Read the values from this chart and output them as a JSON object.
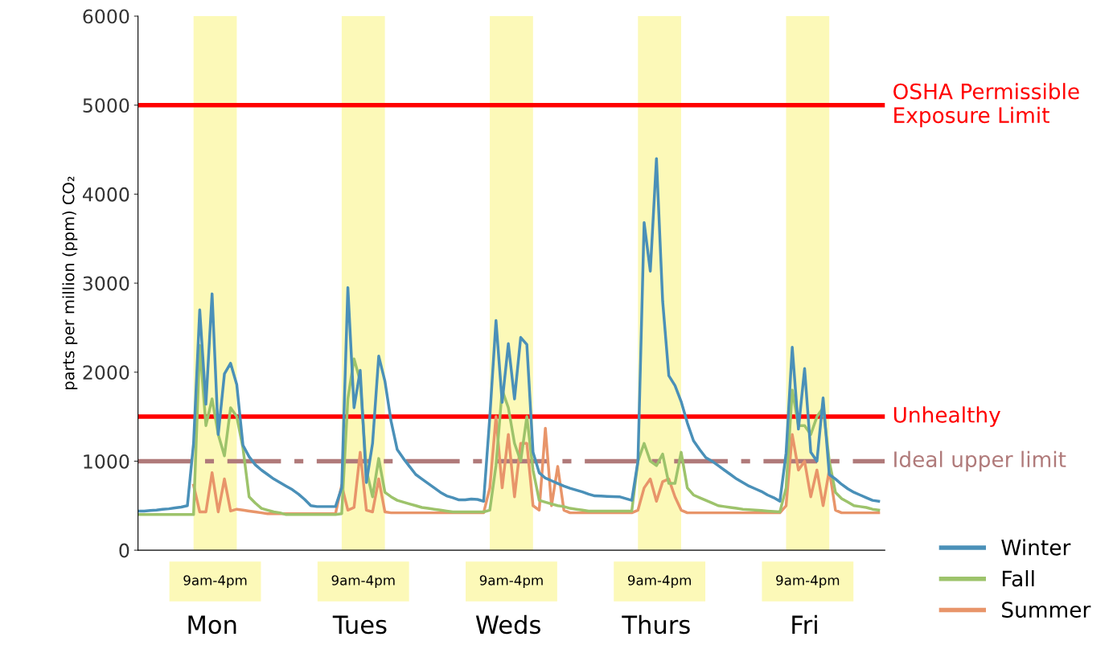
{
  "chart_data": {
    "type": "line",
    "ylabel": "parts per million (ppm) CO₂",
    "categories": [
      null,
      null,
      null,
      null,
      null,
      null,
      null,
      null,
      null,
      null,
      null,
      null,
      "Mon",
      null,
      null,
      null,
      null,
      null,
      null,
      null,
      null,
      null,
      null,
      null,
      null,
      null,
      null,
      null,
      null,
      null,
      null,
      null,
      null,
      null,
      null,
      null,
      "Tues",
      null,
      null,
      null,
      null,
      null,
      null,
      null,
      null,
      null,
      null,
      null,
      null,
      null,
      null,
      null,
      null,
      null,
      null,
      null,
      null,
      null,
      null,
      null,
      "Weds",
      null,
      null,
      null,
      null,
      null,
      null,
      null,
      null,
      null,
      null,
      null,
      null,
      null,
      null,
      null,
      null,
      null,
      null,
      null,
      null,
      null,
      null,
      null,
      "Thurs",
      null,
      null,
      null,
      null,
      null,
      null,
      null,
      null,
      null,
      null,
      null,
      null,
      null,
      null,
      null,
      null,
      null,
      null,
      null,
      null,
      null,
      null,
      null,
      "Fri",
      null,
      null,
      null,
      null,
      null,
      null,
      null,
      null,
      null,
      null,
      null,
      null
    ],
    "ylim": [
      0,
      6000
    ],
    "yticks": [
      0,
      1000,
      2000,
      3000,
      4000,
      5000,
      6000
    ],
    "grid": false,
    "legend": "bottom right",
    "line_style": "solid",
    "marker": "none",
    "annotations": [
      "9am-4pm",
      "9am-4pm",
      "9am-4pm",
      "9am-4pm",
      "9am-4pm"
    ],
    "ref_lines": [
      {
        "axis": "y",
        "value": 5000,
        "label": "OSHA Permissible Exposure Limit",
        "color": "#ff0000",
        "line_style": "solid"
      },
      {
        "axis": "y",
        "value": 1500,
        "label": "Unhealthy",
        "color": "#ff0000",
        "line_style": "solid"
      },
      {
        "axis": "y",
        "value": 1000,
        "label": "Ideal upper limit",
        "color": "#b07a7a",
        "line_style": "dashed"
      }
    ],
    "series": [
      {
        "name": "Summer",
        "color": "#e8956a",
        "values": [
          null,
          null,
          null,
          null,
          null,
          null,
          null,
          null,
          null,
          730,
          430,
          430,
          870,
          430,
          800,
          440,
          460,
          450,
          440,
          430,
          420,
          410,
          410,
          410,
          410,
          410,
          410,
          410,
          410,
          410,
          410,
          410,
          410,
          730,
          450,
          480,
          1100,
          450,
          430,
          800,
          430,
          420,
          420,
          420,
          420,
          420,
          420,
          420,
          420,
          420,
          420,
          420,
          420,
          420,
          420,
          420,
          420,
          700,
          1500,
          700,
          1300,
          600,
          1200,
          1200,
          500,
          450,
          1370,
          500,
          940,
          450,
          420,
          420,
          420,
          420,
          420,
          420,
          420,
          420,
          420,
          420,
          420,
          450,
          700,
          800,
          550,
          770,
          800,
          600,
          450,
          420,
          420,
          420,
          420,
          420,
          420,
          420,
          420,
          420,
          420,
          420,
          420,
          420,
          420,
          420,
          420,
          500,
          1300,
          900,
          1000,
          600,
          900,
          500,
          900,
          450,
          420,
          420,
          420,
          420,
          420,
          420,
          420
        ]
      },
      {
        "name": "Fall",
        "color": "#9dc36b",
        "values": [
          400,
          400,
          400,
          400,
          400,
          400,
          400,
          400,
          400,
          400,
          2300,
          1400,
          1700,
          1300,
          1060,
          1600,
          1500,
          1150,
          600,
          530,
          470,
          450,
          430,
          420,
          400,
          400,
          400,
          400,
          400,
          400,
          400,
          400,
          400,
          410,
          1700,
          2150,
          1900,
          900,
          600,
          1030,
          650,
          600,
          560,
          540,
          520,
          500,
          480,
          470,
          460,
          450,
          440,
          430,
          430,
          430,
          430,
          430,
          430,
          450,
          950,
          1800,
          1600,
          1200,
          1000,
          1500,
          900,
          560,
          540,
          520,
          500,
          490,
          470,
          460,
          450,
          440,
          440,
          440,
          440,
          440,
          440,
          440,
          440,
          1000,
          1200,
          1000,
          950,
          1080,
          750,
          750,
          1100,
          700,
          620,
          590,
          560,
          530,
          500,
          490,
          480,
          470,
          460,
          455,
          450,
          445,
          440,
          435,
          430,
          700,
          1800,
          1400,
          1400,
          1300,
          1500,
          1600,
          1000,
          650,
          580,
          540,
          500,
          490,
          480,
          460,
          450
        ]
      },
      {
        "name": "Winter",
        "color": "#4a90b8",
        "values": [
          440,
          440,
          445,
          450,
          460,
          465,
          475,
          485,
          500,
          1200,
          2700,
          1640,
          2880,
          1300,
          1980,
          2100,
          1860,
          1180,
          1050,
          960,
          900,
          850,
          800,
          760,
          720,
          680,
          630,
          570,
          500,
          490,
          490,
          490,
          490,
          700,
          2950,
          1600,
          2020,
          760,
          1200,
          2180,
          1900,
          1450,
          1130,
          1030,
          940,
          850,
          800,
          750,
          700,
          650,
          610,
          590,
          565,
          565,
          575,
          570,
          550,
          1500,
          2580,
          1660,
          2320,
          1700,
          2390,
          2310,
          1100,
          870,
          810,
          780,
          750,
          720,
          695,
          675,
          655,
          630,
          610,
          608,
          605,
          602,
          600,
          580,
          560,
          1000,
          3680,
          3135,
          4400,
          2800,
          1960,
          1850,
          1670,
          1430,
          1230,
          1130,
          1040,
          1000,
          950,
          900,
          850,
          800,
          760,
          720,
          690,
          660,
          620,
          590,
          550,
          1090,
          2280,
          1360,
          2040,
          1100,
          1000,
          1710,
          850,
          800,
          740,
          690,
          650,
          620,
          590,
          560,
          550
        ]
      }
    ]
  }
}
